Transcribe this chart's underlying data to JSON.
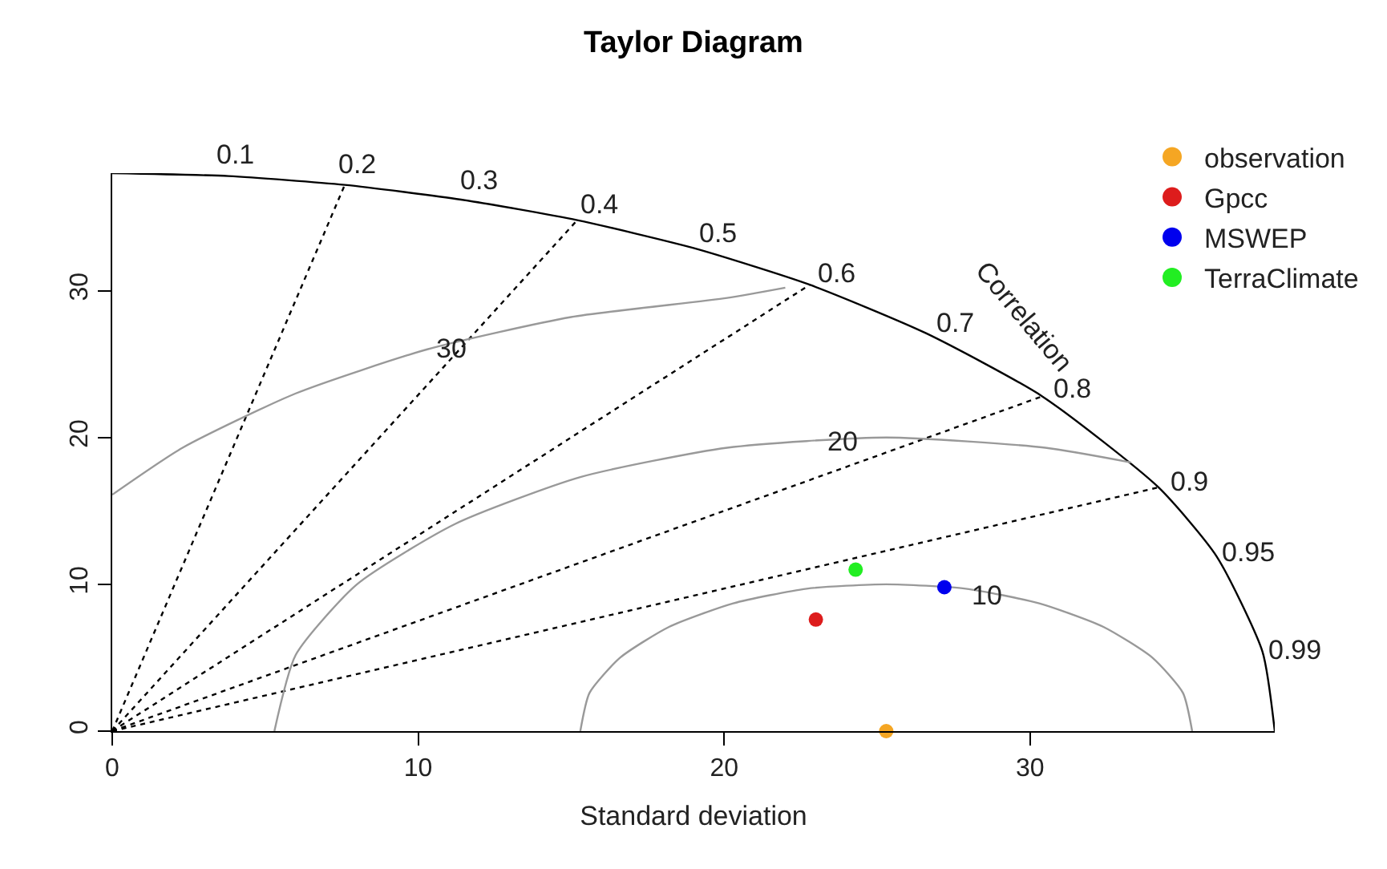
{
  "chart_data": {
    "type": "scatter",
    "title": "Taylor Diagram",
    "xlabel": "Standard deviation",
    "xlim": [
      0,
      38
    ],
    "ylim": [
      0,
      38
    ],
    "xticks": [
      0,
      10,
      20,
      30
    ],
    "yticks": [
      0,
      10,
      20,
      30
    ],
    "grid": false,
    "legend": "top right",
    "marker": "circle",
    "series": [
      {
        "type": "line",
        "marker": "none",
        "color": "#000000",
        "line_style": "solid",
        "x": [
          38,
          37.6,
          36.1,
          34.2,
          30.4,
          26.6,
          22.8,
          19,
          15.2,
          11.4,
          7.6,
          3.8,
          0
        ],
        "values": [
          0,
          5.4,
          11.9,
          16.6,
          22.8,
          27.1,
          30.4,
          32.9,
          34.8,
          36.2,
          37.2,
          37.8,
          38
        ]
      },
      {
        "type": "line",
        "marker": "none",
        "color": "#000000",
        "line_style": "dotted",
        "x": [
          0,
          7.6
        ],
        "values": [
          0,
          37.2
        ]
      },
      {
        "type": "line",
        "marker": "none",
        "color": "#000000",
        "line_style": "dotted",
        "x": [
          0,
          15.2
        ],
        "values": [
          0,
          34.8
        ]
      },
      {
        "type": "line",
        "marker": "none",
        "color": "#000000",
        "line_style": "dotted",
        "x": [
          0,
          22.8
        ],
        "values": [
          0,
          30.4
        ]
      },
      {
        "type": "line",
        "marker": "none",
        "color": "#000000",
        "line_style": "dotted",
        "x": [
          0,
          30.4
        ],
        "values": [
          0,
          22.8
        ]
      },
      {
        "type": "line",
        "marker": "none",
        "color": "#000000",
        "line_style": "dotted",
        "x": [
          0,
          34.2
        ],
        "values": [
          0,
          16.6
        ]
      },
      {
        "type": "line",
        "marker": "none",
        "color": "#999999",
        "line_style": "solid",
        "x": [
          35.3,
          35.0,
          34.0,
          32.4,
          30.3,
          27.9,
          25.3,
          22.7,
          20.3,
          18.2,
          16.6,
          15.6,
          15.3
        ],
        "values": [
          0,
          2.6,
          5,
          7.1,
          8.7,
          9.7,
          10,
          9.7,
          8.7,
          7.1,
          5,
          2.6,
          0
        ]
      },
      {
        "type": "line",
        "marker": "none",
        "color": "#999999",
        "line_style": "solid",
        "x": [
          33.3,
          30.5,
          25.3,
          20.1,
          15.3,
          11.2,
          8.0,
          6.0,
          5.3
        ],
        "values": [
          18.3,
          19.3,
          20,
          19.3,
          17.3,
          14.1,
          10,
          5.2,
          0
        ]
      },
      {
        "type": "line",
        "marker": "none",
        "color": "#999999",
        "line_style": "solid",
        "x": [
          22.0,
          20.1,
          15.0,
          10.3,
          6.0,
          2.3,
          0.0
        ],
        "values": [
          30.2,
          29.5,
          28.2,
          26.0,
          23.0,
          19.3,
          16.1
        ]
      },
      {
        "name": "observation",
        "color": "#f5a623",
        "x": [
          25.3
        ],
        "values": [
          0
        ]
      },
      {
        "name": "Gpcc",
        "color": "#dd1c1c",
        "x": [
          23.0
        ],
        "values": [
          7.6
        ]
      },
      {
        "name": "MSWEP",
        "color": "#0000ee",
        "x": [
          27.2
        ],
        "values": [
          9.8
        ]
      },
      {
        "name": "TerraClimate",
        "color": "#22ee22",
        "x": [
          24.3
        ],
        "values": [
          11.0
        ]
      }
    ],
    "annotations": [
      {
        "text": "0.1",
        "x": 3.8,
        "y": 37.8
      },
      {
        "text": "0.2",
        "x": 7.6,
        "y": 37.2
      },
      {
        "text": "0.3",
        "x": 11.4,
        "y": 36.2
      },
      {
        "text": "0.4",
        "x": 15.2,
        "y": 34.8
      },
      {
        "text": "0.5",
        "x": 19,
        "y": 32.9
      },
      {
        "text": "0.6",
        "x": 22.8,
        "y": 30.4
      },
      {
        "text": "0.7",
        "x": 26.6,
        "y": 27.1
      },
      {
        "text": "0.8",
        "x": 30.4,
        "y": 22.8
      },
      {
        "text": "0.9",
        "x": 34.2,
        "y": 16.6
      },
      {
        "text": "0.95",
        "x": 36.1,
        "y": 11.9
      },
      {
        "text": "0.99",
        "x": 37.6,
        "y": 5.4
      },
      {
        "text": "30",
        "x": 11.1,
        "y": 26.0
      },
      {
        "text": "20",
        "x": 23.9,
        "y": 19.7
      },
      {
        "text": "10",
        "x": 28.6,
        "y": 9.2
      },
      "Correlation"
    ]
  }
}
